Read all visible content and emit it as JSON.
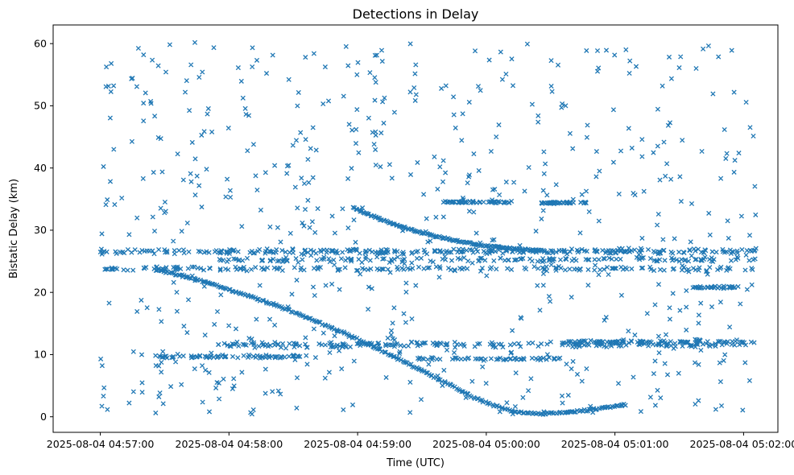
{
  "chart_data": {
    "type": "scatter",
    "title": "Detections in Delay",
    "xlabel": "Time (UTC)",
    "ylabel": "Bistatic Delay (km)",
    "marker": "x",
    "marker_color": "#1f77b4",
    "marker_half_size": 2.6,
    "marker_stroke_width": 1.3,
    "grid": false,
    "legend": "none",
    "x_axis": {
      "range_seconds": [
        -22,
        316
      ],
      "tick_seconds": [
        0,
        60,
        120,
        180,
        240,
        300
      ],
      "tick_labels": [
        "2025-08-04 04:57:00",
        "2025-08-04 04:58:00",
        "2025-08-04 04:59:00",
        "2025-08-04 05:00:00",
        "2025-08-04 05:01:00",
        "2025-08-04 05:02:00"
      ]
    },
    "y_axis": {
      "range": [
        -2.5,
        63
      ],
      "ticks": [
        0,
        10,
        20,
        30,
        40,
        50,
        60
      ]
    },
    "series": [
      {
        "name": "background-noise",
        "kind": "uniform",
        "seed": 11,
        "count": 640,
        "t_range": [
          0,
          306
        ],
        "y_range": [
          0.4,
          60.2
        ]
      },
      {
        "name": "clutter-band-26km",
        "kind": "band",
        "seed": 21,
        "count": 280,
        "t_range": [
          0,
          306
        ],
        "y_center": 26.6,
        "y_jitter": 0.55
      },
      {
        "name": "clutter-band-25km",
        "kind": "band",
        "seed": 22,
        "count": 150,
        "t_range": [
          55,
          306
        ],
        "y_center": 25.3,
        "y_jitter": 0.45
      },
      {
        "name": "clutter-band-24km",
        "kind": "band",
        "seed": 23,
        "count": 170,
        "t_range": [
          0,
          306
        ],
        "y_center": 23.8,
        "y_jitter": 0.4
      },
      {
        "name": "clutter-band-12km",
        "kind": "band",
        "seed": 24,
        "count": 210,
        "t_range": [
          55,
          306
        ],
        "y_center": 11.6,
        "y_jitter": 0.5
      },
      {
        "name": "clutter-band-10km-left",
        "kind": "band",
        "seed": 25,
        "count": 70,
        "t_range": [
          25,
          95
        ],
        "y_center": 9.7,
        "y_jitter": 0.3
      },
      {
        "name": "clutter-band-9km-mid",
        "kind": "band",
        "seed": 26,
        "count": 55,
        "t_range": [
          148,
          215
        ],
        "y_center": 9.3,
        "y_jitter": 0.25
      },
      {
        "name": "clutter-band-12km-right",
        "kind": "band",
        "seed": 27,
        "count": 80,
        "t_range": [
          218,
          303
        ],
        "y_center": 12.1,
        "y_jitter": 0.3
      },
      {
        "name": "clutter-band-34km-a",
        "kind": "band",
        "seed": 28,
        "count": 55,
        "t_range": [
          160,
          192
        ],
        "y_center": 34.5,
        "y_jitter": 0.2
      },
      {
        "name": "clutter-band-34km-b",
        "kind": "band",
        "seed": 29,
        "count": 40,
        "t_range": [
          205,
          228
        ],
        "y_center": 34.4,
        "y_jitter": 0.2
      },
      {
        "name": "clutter-band-21km-right",
        "kind": "band",
        "seed": 30,
        "count": 35,
        "t_range": [
          276,
          296
        ],
        "y_center": 20.8,
        "y_jitter": 0.25
      },
      {
        "name": "target-track-descending",
        "kind": "track",
        "seed": 31,
        "step": 0.8,
        "t_jitter": 0.4,
        "y_jitter": 0.14,
        "points": [
          [
            25,
            23.7
          ],
          [
            38,
            22.7
          ],
          [
            52,
            21.3
          ],
          [
            66,
            19.8
          ],
          [
            78,
            18.4
          ],
          [
            90,
            16.9
          ],
          [
            102,
            15.2
          ],
          [
            114,
            13.4
          ],
          [
            126,
            11.5
          ],
          [
            138,
            9.5
          ],
          [
            148,
            7.8
          ],
          [
            158,
            6.0
          ],
          [
            166,
            4.6
          ],
          [
            174,
            3.2
          ],
          [
            182,
            2.0
          ],
          [
            190,
            1.1
          ],
          [
            198,
            0.6
          ],
          [
            207,
            0.5
          ],
          [
            217,
            0.7
          ],
          [
            228,
            1.1
          ],
          [
            238,
            1.6
          ],
          [
            246,
            2.0
          ]
        ]
      },
      {
        "name": "target-track-upper",
        "kind": "track",
        "seed": 32,
        "step": 0.7,
        "t_jitter": 0.3,
        "y_jitter": 0.12,
        "points": [
          [
            118,
            33.6
          ],
          [
            126,
            32.4
          ],
          [
            134,
            31.3
          ],
          [
            142,
            30.4
          ],
          [
            150,
            29.6
          ],
          [
            158,
            28.9
          ],
          [
            166,
            28.3
          ],
          [
            174,
            27.8
          ],
          [
            182,
            27.4
          ],
          [
            190,
            27.1
          ],
          [
            200,
            26.8
          ],
          [
            208,
            26.7
          ]
        ]
      }
    ]
  }
}
